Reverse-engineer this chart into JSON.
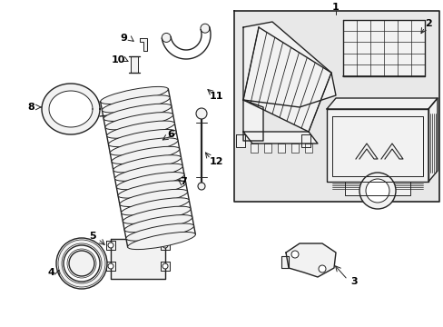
{
  "bg_color": "#ffffff",
  "line_color": "#222222",
  "label_color": "#000000",
  "fig_width": 4.89,
  "fig_height": 3.6,
  "dpi": 100,
  "box_fill": "#e8e8e8",
  "part_fill": "#f2f2f2"
}
